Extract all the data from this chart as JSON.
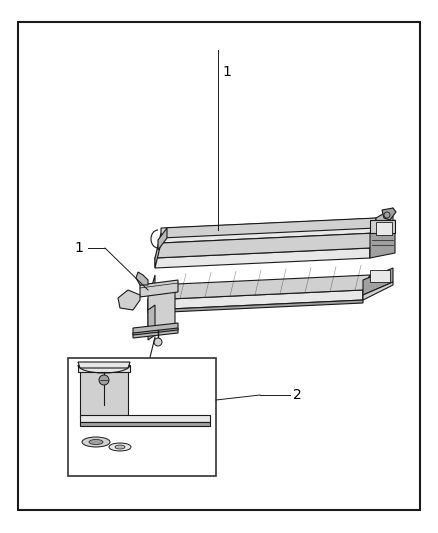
{
  "bg_color": "#ffffff",
  "border_color": "#1a1a1a",
  "border_linewidth": 1.5,
  "figure_width": 4.38,
  "figure_height": 5.33,
  "dpi": 100,
  "lc": "#1a1a1a",
  "lw": 0.8,
  "fill_light": "#e8e8e8",
  "fill_mid": "#d0d0d0",
  "fill_dark": "#b8b8b8",
  "fill_darker": "#a0a0a0",
  "fill_white": "#f5f5f5"
}
